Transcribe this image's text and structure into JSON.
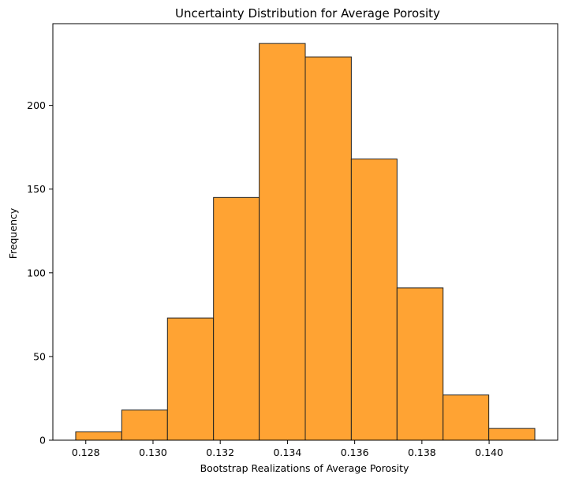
{
  "chart_data": {
    "type": "bar",
    "title": "Uncertainty Distribution for Average Porosity",
    "xlabel": "Bootstrap Realizations of Average Porosity",
    "ylabel": "Frequency",
    "bins": [
      {
        "start": 0.1277,
        "end": 0.12907,
        "value": 5
      },
      {
        "start": 0.12907,
        "end": 0.13043,
        "value": 18
      },
      {
        "start": 0.13043,
        "end": 0.1318,
        "value": 73
      },
      {
        "start": 0.1318,
        "end": 0.13316,
        "value": 145
      },
      {
        "start": 0.13316,
        "end": 0.13453,
        "value": 237
      },
      {
        "start": 0.13453,
        "end": 0.1359,
        "value": 229
      },
      {
        "start": 0.1359,
        "end": 0.13726,
        "value": 168
      },
      {
        "start": 0.13726,
        "end": 0.13863,
        "value": 91
      },
      {
        "start": 0.13863,
        "end": 0.13999,
        "value": 27
      },
      {
        "start": 0.13999,
        "end": 0.14136,
        "value": 7
      }
    ],
    "xlim": [
      0.12702,
      0.14204
    ],
    "ylim": [
      0,
      248.85
    ],
    "xticks": [
      {
        "value": 0.128,
        "label": "0.128"
      },
      {
        "value": 0.13,
        "label": "0.130"
      },
      {
        "value": 0.132,
        "label": "0.132"
      },
      {
        "value": 0.134,
        "label": "0.134"
      },
      {
        "value": 0.136,
        "label": "0.136"
      },
      {
        "value": 0.138,
        "label": "0.138"
      },
      {
        "value": 0.14,
        "label": "0.140"
      }
    ],
    "yticks": [
      {
        "value": 0,
        "label": "0"
      },
      {
        "value": 50,
        "label": "50"
      },
      {
        "value": 100,
        "label": "100"
      },
      {
        "value": 150,
        "label": "150"
      },
      {
        "value": 200,
        "label": "200"
      }
    ],
    "grid": false,
    "bar_color": "#ffa333",
    "edge_color": "#222222"
  }
}
